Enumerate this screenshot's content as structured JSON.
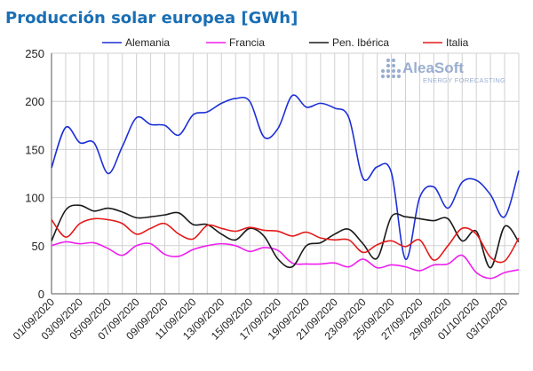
{
  "colors": {
    "title": "#1a6fb5",
    "grid": "#d0d0d0",
    "axis": "#555555",
    "brand": "#9aaed0"
  },
  "brand": {
    "name": "AleaSoft",
    "tagline": "ENERGY FORECASTING",
    "icon": "dot-grid-logo-icon"
  },
  "chart_data": {
    "type": "line",
    "title": "Producción solar europea [GWh]",
    "xlabel": "",
    "ylabel": "",
    "ylim": [
      0,
      250
    ],
    "yticks": [
      0,
      50,
      100,
      150,
      200,
      250
    ],
    "grid": true,
    "legend_position": "top",
    "x": [
      "01/09/2020",
      "02/09/2020",
      "03/09/2020",
      "04/09/2020",
      "05/09/2020",
      "06/09/2020",
      "07/09/2020",
      "08/09/2020",
      "09/09/2020",
      "10/09/2020",
      "11/09/2020",
      "12/09/2020",
      "13/09/2020",
      "14/09/2020",
      "15/09/2020",
      "16/09/2020",
      "17/09/2020",
      "18/09/2020",
      "19/09/2020",
      "20/09/2020",
      "21/09/2020",
      "22/09/2020",
      "23/09/2020",
      "24/09/2020",
      "25/09/2020",
      "26/09/2020",
      "27/09/2020",
      "28/09/2020",
      "29/09/2020",
      "30/09/2020",
      "01/10/2020",
      "02/10/2020",
      "03/10/2020",
      "04/10/2020"
    ],
    "x_tick_labels": [
      "01/09/2020",
      "03/09/2020",
      "05/09/2020",
      "07/09/2020",
      "09/09/2020",
      "11/09/2020",
      "13/09/2020",
      "15/09/2020",
      "17/09/2020",
      "19/09/2020",
      "21/09/2020",
      "23/09/2020",
      "25/09/2020",
      "27/09/2020",
      "29/09/2020",
      "01/10/2020",
      "03/10/2020"
    ],
    "series": [
      {
        "name": "Alemania",
        "color": "#1c2fd6",
        "values": [
          131,
          173,
          157,
          157,
          125,
          153,
          183,
          176,
          175,
          165,
          186,
          189,
          198,
          203,
          200,
          163,
          172,
          206,
          194,
          198,
          193,
          183,
          120,
          132,
          126,
          36,
          100,
          111,
          89,
          116,
          118,
          103,
          80,
          128
        ]
      },
      {
        "name": "Francia",
        "color": "#ee1fee",
        "values": [
          50,
          54,
          52,
          53,
          47,
          40,
          50,
          52,
          41,
          39,
          46,
          50,
          52,
          50,
          44,
          48,
          45,
          32,
          31,
          31,
          32,
          28,
          36,
          27,
          30,
          28,
          24,
          30,
          31,
          40,
          22,
          16,
          22,
          25
        ]
      },
      {
        "name": "Pen. Ibérica",
        "color": "#1a1a1a",
        "values": [
          55,
          87,
          92,
          86,
          89,
          85,
          79,
          80,
          82,
          84,
          72,
          72,
          62,
          56,
          68,
          60,
          36,
          28,
          50,
          53,
          62,
          67,
          52,
          37,
          80,
          80,
          78,
          76,
          78,
          55,
          65,
          27,
          70,
          54
        ]
      },
      {
        "name": "Italia",
        "color": "#e31a1a",
        "values": [
          77,
          59,
          73,
          78,
          77,
          73,
          62,
          68,
          73,
          62,
          57,
          71,
          68,
          65,
          69,
          66,
          65,
          60,
          64,
          58,
          56,
          56,
          43,
          51,
          55,
          49,
          56,
          35,
          50,
          68,
          62,
          38,
          34,
          58
        ]
      }
    ]
  }
}
